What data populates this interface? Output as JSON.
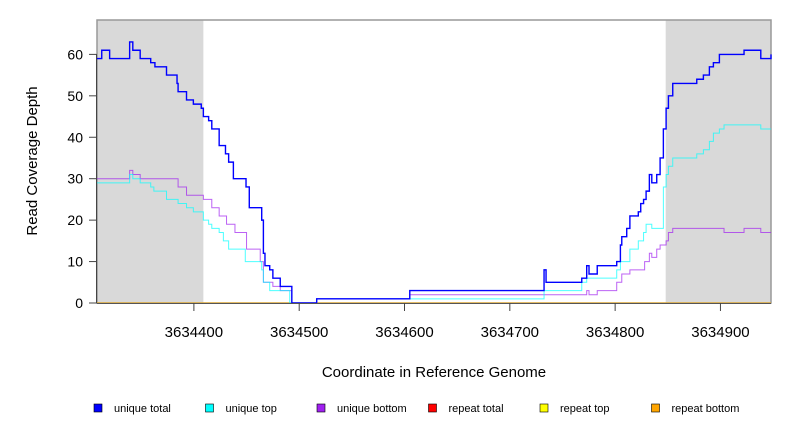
{
  "chart_data": {
    "type": "line",
    "title": "",
    "xlabel": "Coordinate in Reference Genome",
    "ylabel": "Read Coverage Depth",
    "xlim": [
      3634308,
      3634948
    ],
    "ylim": [
      0,
      68.3
    ],
    "x_ticks": [
      3634400,
      3634500,
      3634600,
      3634700,
      3634800,
      3634900
    ],
    "x_tick_labels": [
      "3634400",
      "3634500",
      "3634600",
      "3634700",
      "3634800",
      "3634900"
    ],
    "y_ticks": [
      0,
      10,
      20,
      30,
      40,
      50,
      60
    ],
    "y_tick_labels": [
      "0",
      "10",
      "20",
      "30",
      "40",
      "50",
      "60"
    ],
    "shaded_regions": [
      [
        3634308,
        3634409
      ],
      [
        3634848,
        3634948
      ]
    ],
    "shade_color": "#d9d9d9",
    "legend_placement": "bottom",
    "series": [
      {
        "name": "repeat total",
        "color": "#ff0000",
        "points": [
          [
            3634308,
            0
          ],
          [
            3634948,
            0
          ]
        ]
      },
      {
        "name": "repeat top",
        "color": "#ffff00",
        "points": [
          [
            3634308,
            0
          ],
          [
            3634948,
            0
          ]
        ]
      },
      {
        "name": "repeat bottom",
        "color": "#ffa500",
        "points": [
          [
            3634308,
            0
          ],
          [
            3634948,
            0
          ]
        ]
      },
      {
        "name": "unique bottom",
        "color": "#a020f0",
        "points": [
          [
            3634308,
            30
          ],
          [
            3634339,
            32
          ],
          [
            3634342,
            31
          ],
          [
            3634349,
            30
          ],
          [
            3634385,
            28
          ],
          [
            3634393,
            26
          ],
          [
            3634409,
            25
          ],
          [
            3634417,
            23
          ],
          [
            3634424,
            21
          ],
          [
            3634431,
            19
          ],
          [
            3634439,
            17
          ],
          [
            3634450,
            13
          ],
          [
            3634463,
            10
          ],
          [
            3634466,
            5
          ],
          [
            3634475,
            4
          ],
          [
            3634482,
            3
          ],
          [
            3634493,
            0
          ],
          [
            3634516.6,
            1
          ],
          [
            3634605,
            2
          ],
          [
            3634773,
            3
          ],
          [
            3634775.2,
            2
          ],
          [
            3634783,
            3
          ],
          [
            3634801.5,
            5
          ],
          [
            3634806.3,
            7
          ],
          [
            3634814,
            8
          ],
          [
            3634828,
            10
          ],
          [
            3634832.5,
            12
          ],
          [
            3634834.8,
            11
          ],
          [
            3634839.5,
            13
          ],
          [
            3634842.7,
            14
          ],
          [
            3634848.4,
            15
          ],
          [
            3634850.6,
            17
          ],
          [
            3634854.7,
            18
          ],
          [
            3634903.4,
            17
          ],
          [
            3634922.4,
            18
          ],
          [
            3634938.3,
            17
          ],
          [
            3634948,
            17
          ]
        ]
      },
      {
        "name": "unique top",
        "color": "#00ffff",
        "points": [
          [
            3634308,
            29
          ],
          [
            3634339,
            31
          ],
          [
            3634342,
            30
          ],
          [
            3634349,
            29
          ],
          [
            3634359,
            28
          ],
          [
            3634362,
            27
          ],
          [
            3634374,
            25
          ],
          [
            3634385,
            24
          ],
          [
            3634393,
            23
          ],
          [
            3634399.5,
            22
          ],
          [
            3634409,
            20
          ],
          [
            3634414,
            19
          ],
          [
            3634417,
            18
          ],
          [
            3634424,
            17
          ],
          [
            3634428,
            15
          ],
          [
            3634433,
            13
          ],
          [
            3634448.8,
            10
          ],
          [
            3634464.4,
            8
          ],
          [
            3634466,
            5
          ],
          [
            3634472,
            3
          ],
          [
            3634491,
            0
          ],
          [
            3634516.6,
            1
          ],
          [
            3634732.5,
            3
          ],
          [
            3634768.3,
            5
          ],
          [
            3634773,
            6
          ],
          [
            3634801.5,
            8
          ],
          [
            3634805,
            10
          ],
          [
            3634814,
            13
          ],
          [
            3634822,
            15
          ],
          [
            3634827,
            17
          ],
          [
            3634829.4,
            19
          ],
          [
            3634834.8,
            18
          ],
          [
            3634845.8,
            28
          ],
          [
            3634848.4,
            31
          ],
          [
            3634850.6,
            33
          ],
          [
            3634854.7,
            35
          ],
          [
            3634877.5,
            36
          ],
          [
            3634883.8,
            37
          ],
          [
            3634889.5,
            39
          ],
          [
            3634893.3,
            41
          ],
          [
            3634899,
            42
          ],
          [
            3634903.4,
            43
          ],
          [
            3634938.3,
            42
          ],
          [
            3634948,
            42
          ]
        ]
      },
      {
        "name": "unique total",
        "color": "#0000ff",
        "points": [
          [
            3634308,
            59
          ],
          [
            3634312.5,
            61
          ],
          [
            3634320,
            59
          ],
          [
            3634339,
            63
          ],
          [
            3634342,
            61
          ],
          [
            3634349,
            59
          ],
          [
            3634359,
            58
          ],
          [
            3634363,
            57
          ],
          [
            3634374,
            55
          ],
          [
            3634384,
            53
          ],
          [
            3634385,
            51
          ],
          [
            3634393,
            49
          ],
          [
            3634399.5,
            48
          ],
          [
            3634407,
            47
          ],
          [
            3634409,
            45
          ],
          [
            3634414,
            44
          ],
          [
            3634417,
            42
          ],
          [
            3634424,
            38
          ],
          [
            3634430,
            36
          ],
          [
            3634433,
            34
          ],
          [
            3634437.5,
            30
          ],
          [
            3634449.5,
            28
          ],
          [
            3634452.6,
            23
          ],
          [
            3634464.4,
            20
          ],
          [
            3634466,
            12
          ],
          [
            3634467.5,
            9
          ],
          [
            3634472,
            8
          ],
          [
            3634475,
            6
          ],
          [
            3634482,
            4
          ],
          [
            3634493,
            0
          ],
          [
            3634516.6,
            1
          ],
          [
            3634605,
            3
          ],
          [
            3634732.5,
            8
          ],
          [
            3634734.4,
            5
          ],
          [
            3634768.3,
            6
          ],
          [
            3634773,
            9
          ],
          [
            3634775.2,
            7
          ],
          [
            3634783,
            9
          ],
          [
            3634801.5,
            10
          ],
          [
            3634805,
            14
          ],
          [
            3634806.3,
            16
          ],
          [
            3634811,
            18
          ],
          [
            3634814,
            21
          ],
          [
            3634822,
            22
          ],
          [
            3634824.3,
            24
          ],
          [
            3634827,
            25
          ],
          [
            3634829.4,
            27
          ],
          [
            3634832.5,
            31
          ],
          [
            3634834.8,
            29
          ],
          [
            3634839.5,
            31
          ],
          [
            3634842.7,
            35
          ],
          [
            3634845.8,
            42
          ],
          [
            3634848.4,
            47
          ],
          [
            3634850.6,
            50
          ],
          [
            3634854.7,
            53
          ],
          [
            3634877.5,
            54
          ],
          [
            3634883.8,
            55
          ],
          [
            3634889.5,
            57
          ],
          [
            3634893.3,
            58
          ],
          [
            3634899,
            60
          ],
          [
            3634922.4,
            61
          ],
          [
            3634938.3,
            59
          ],
          [
            3634948,
            60
          ]
        ]
      }
    ],
    "legend": [
      {
        "label": "unique total",
        "color": "#0000ff"
      },
      {
        "label": "unique top",
        "color": "#00ffff"
      },
      {
        "label": "unique bottom",
        "color": "#a020f0"
      },
      {
        "label": "repeat total",
        "color": "#ff0000"
      },
      {
        "label": "repeat top",
        "color": "#ffff00"
      },
      {
        "label": "repeat bottom",
        "color": "#ffa500"
      }
    ]
  }
}
